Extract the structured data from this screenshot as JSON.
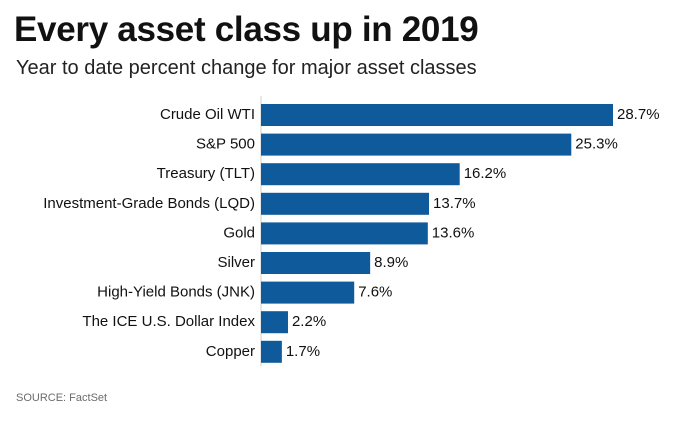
{
  "chart_data": {
    "type": "bar",
    "orientation": "horizontal",
    "title": "Every asset class up in 2019",
    "subtitle": "Year to date percent change for major asset classes",
    "categories": [
      "Crude Oil WTI",
      "S&P 500",
      "Treasury (TLT)",
      "Investment-Grade Bonds (LQD)",
      "Gold",
      "Silver",
      "High-Yield Bonds (JNK)",
      "The ICE U.S. Dollar Index",
      "Copper"
    ],
    "values": [
      28.7,
      25.3,
      16.2,
      13.7,
      13.6,
      8.9,
      7.6,
      2.2,
      1.7
    ],
    "value_labels": [
      "28.7%",
      "25.3%",
      "16.2%",
      "13.7%",
      "13.6%",
      "8.9%",
      "7.6%",
      "2.2%",
      "1.7%"
    ],
    "xlim": [
      0,
      28.7
    ],
    "bar_color": "#0e5a9b",
    "grid": false,
    "source": "SOURCE: FactSet"
  }
}
